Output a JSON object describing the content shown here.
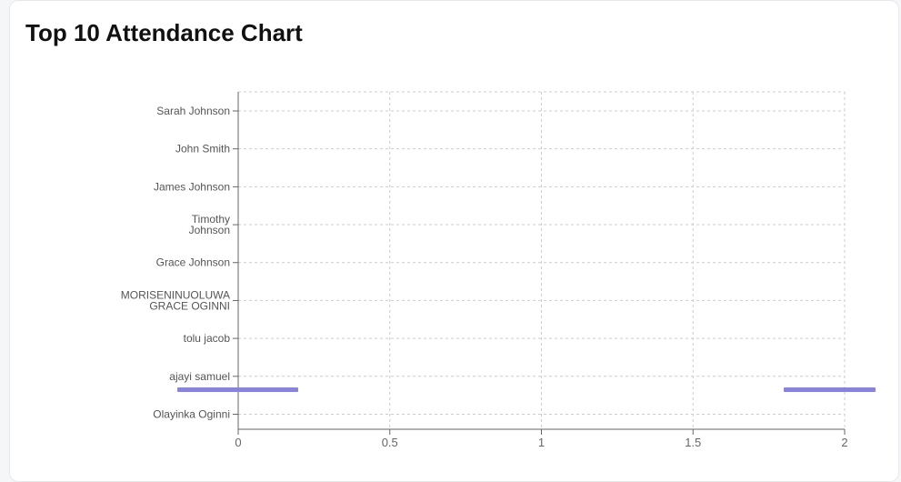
{
  "page": {
    "title": "Top 10 Attendance Chart"
  },
  "chart_data": {
    "type": "bar",
    "orientation": "horizontal",
    "title": "Top 10 Attendance Chart",
    "categories": [
      "Sarah Johnson",
      "John Smith",
      "James Johnson",
      "Timothy Johnson",
      "Grace Johnson",
      "MORISENINUOLUWA GRACE OGINNI",
      "tolu jacob",
      "ajayi samuel",
      "Olayinka Oginni"
    ],
    "category_lines": [
      [
        "Sarah Johnson"
      ],
      [
        "John Smith"
      ],
      [
        "James Johnson"
      ],
      [
        "Timothy",
        "Johnson"
      ],
      [
        "Grace Johnson"
      ],
      [
        "MORISENINUOLUWA",
        "GRACE OGINNI"
      ],
      [
        "tolu jacob"
      ],
      [
        "ajayi samuel"
      ],
      [
        "Olayinka Oginni"
      ]
    ],
    "values": [
      0,
      0,
      0,
      0,
      0,
      0,
      0,
      0,
      0
    ],
    "xlim": [
      0,
      2
    ],
    "xticks": [
      "0",
      "0.5",
      "1",
      "1.5",
      "2"
    ],
    "xtick_values": [
      0,
      0.5,
      1,
      1.5,
      2
    ],
    "grid": true,
    "bar_color": "#8884d8",
    "grid_color": "#cccccc",
    "axis_color": "#666666"
  }
}
